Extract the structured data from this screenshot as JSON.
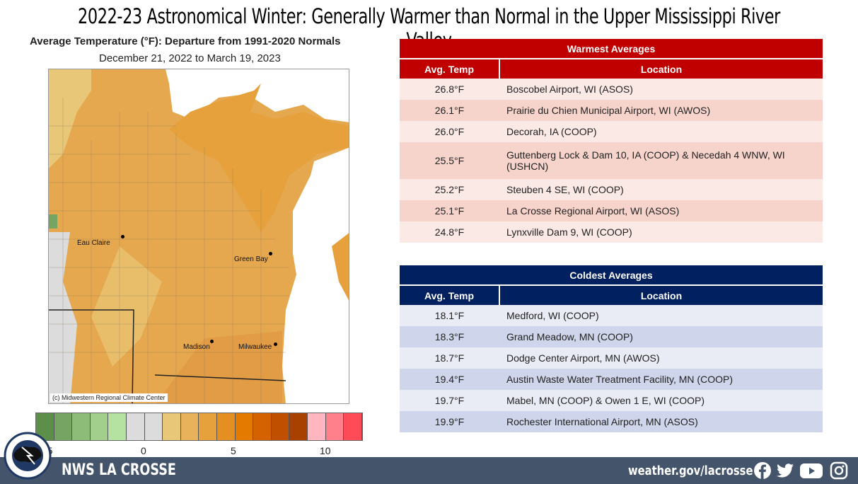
{
  "title": "2022-23 Astronomical Winter: Generally Warmer than Normal in the Upper Mississippi River Valley",
  "map": {
    "title": "Average Temperature (°F): Departure from 1991-2020 Normals",
    "subtitle": "December 21, 2022 to March 19, 2023",
    "credit": "(c) Midwestern Regional Climate Center",
    "cities": [
      "Eau Claire",
      "Green Bay",
      "Madison",
      "Milwaukee"
    ],
    "legend_colors": [
      "#5E8F4A",
      "#76A563",
      "#8DBB78",
      "#A3CF8C",
      "#B5E2A0",
      "#DCDCDC",
      "#DCDCDC",
      "#E8C778",
      "#E8B25A",
      "#E6A13C",
      "#E58F23",
      "#E47A00",
      "#D46200",
      "#C04F00",
      "#A84000",
      "#FFB6C1",
      "#FF7F8A",
      "#FF4A57"
    ],
    "legend_ticks": [
      "-5",
      "0",
      "5",
      "10"
    ]
  },
  "warmest": {
    "title": "Warmest  Averages",
    "col_temp": "Avg. Temp",
    "col_loc": "Location",
    "accent": "#C00000",
    "rows": [
      {
        "temp": "26.8°F",
        "loc": "Boscobel  Airport, WI (ASOS)"
      },
      {
        "temp": "26.1°F",
        "loc": "Prairie du Chien Municipal Airport, WI (AWOS)"
      },
      {
        "temp": "26.0°F",
        "loc": "Decorah, IA (COOP)"
      },
      {
        "temp": "25.5°F",
        "loc": "Guttenberg Lock & Dam 10, IA (COOP) & Necedah 4 WNW, WI (USHCN)"
      },
      {
        "temp": "25.2°F",
        "loc": "Steuben 4 SE, WI  (COOP)"
      },
      {
        "temp": "25.1°F",
        "loc": "La Crosse Regional Airport, WI (ASOS)"
      },
      {
        "temp": "24.8°F",
        "loc": "Lynxville Dam 9, WI (COOP)"
      }
    ]
  },
  "coldest": {
    "title": "Coldest Averages",
    "col_temp": "Avg. Temp",
    "col_loc": "Location",
    "accent": "#002060",
    "rows": [
      {
        "temp": "18.1°F",
        "loc": "Medford, WI (COOP)"
      },
      {
        "temp": "18.3°F",
        "loc": "Grand Meadow, MN (COOP)"
      },
      {
        "temp": "18.7°F",
        "loc": "Dodge Center Airport, MN (AWOS)"
      },
      {
        "temp": "19.4°F",
        "loc": "Austin Waste Water Treatment Facility, MN (COOP)"
      },
      {
        "temp": "19.7°F",
        "loc": "Mabel, MN (COOP) & Owen 1 E, WI (COOP)"
      },
      {
        "temp": "19.9°F",
        "loc": "Rochester International Airport, MN (ASOS)"
      }
    ]
  },
  "footer": {
    "office": "NWS LA CROSSE",
    "url": "weather.gov/lacrosse",
    "logo_text": "NATIONAL WEATHER SERVICE LA CROSSE, WI",
    "icons": [
      "facebook-icon",
      "twitter-icon",
      "youtube-icon",
      "instagram-icon"
    ]
  }
}
